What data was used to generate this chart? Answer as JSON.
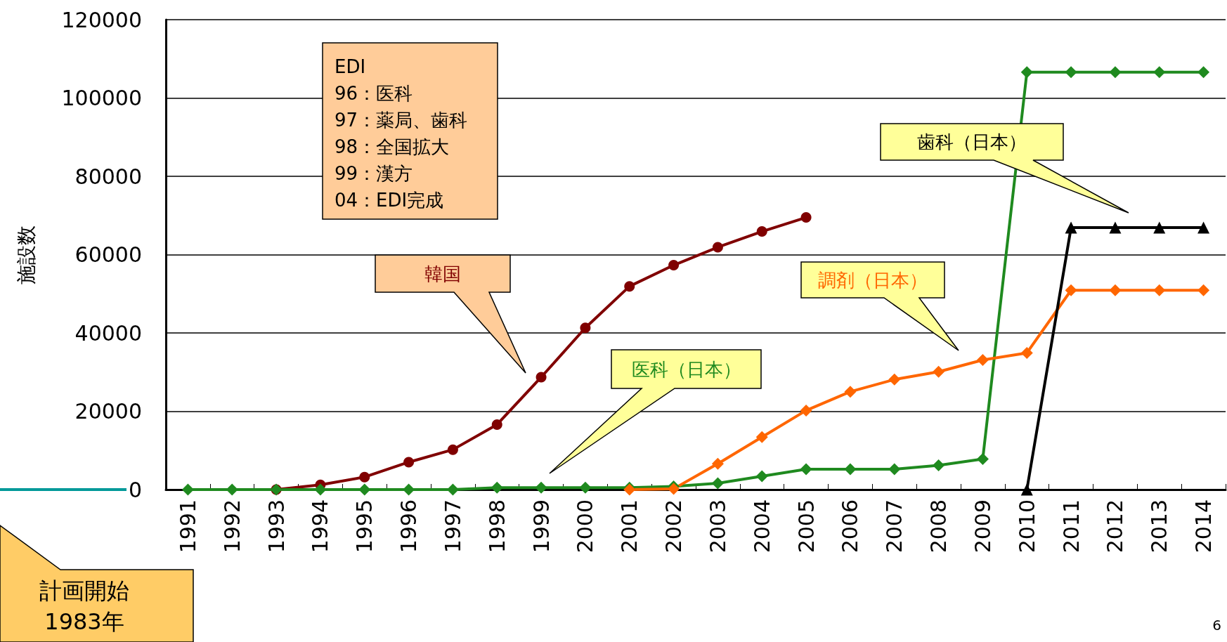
{
  "chart_data": {
    "type": "line",
    "ylabel": "施設数",
    "categories": [
      "1991",
      "1992",
      "1993",
      "1994",
      "1995",
      "1996",
      "1997",
      "1998",
      "1999",
      "2000",
      "2001",
      "2002",
      "2003",
      "2004",
      "2005",
      "2006",
      "2007",
      "2008",
      "2009",
      "2010",
      "2011",
      "2012",
      "2013",
      "2014"
    ],
    "ylim": [
      0,
      120000
    ],
    "yticks": [
      0,
      20000,
      40000,
      60000,
      80000,
      100000,
      120000
    ],
    "grid": "y",
    "legend": false,
    "series": [
      {
        "name": "韓国",
        "color": "#800000",
        "marker": "circle",
        "values": [
          null,
          null,
          0,
          1200,
          3200,
          7000,
          10200,
          16600,
          28700,
          41300,
          51900,
          57300,
          61900,
          65900,
          69500,
          null,
          null,
          null,
          null,
          null,
          null,
          null,
          null,
          null
        ]
      },
      {
        "name": "医科（日本）",
        "color": "#1f8a1f",
        "marker": "diamond",
        "values": [
          0,
          0,
          0,
          0,
          0,
          0,
          0,
          500,
          500,
          500,
          500,
          800,
          1600,
          3400,
          5200,
          5200,
          5200,
          6200,
          7800,
          106600,
          106600,
          106600,
          106600,
          106600
        ]
      },
      {
        "name": "調剤（日本）",
        "color": "#ff6600",
        "marker": "diamond",
        "values": [
          null,
          null,
          null,
          null,
          null,
          null,
          null,
          null,
          null,
          null,
          0,
          200,
          6600,
          13400,
          20200,
          25000,
          28100,
          30100,
          33100,
          34900,
          50900,
          50900,
          50900,
          50900
        ]
      },
      {
        "name": "歯科（日本）",
        "color": "#000000",
        "marker": "triangle",
        "values": [
          null,
          null,
          null,
          null,
          null,
          null,
          null,
          null,
          null,
          null,
          null,
          null,
          null,
          null,
          null,
          null,
          null,
          null,
          null,
          0,
          66900,
          66900,
          66900,
          66900
        ]
      }
    ],
    "annotations": [
      "EDI\n96：医科\n97：薬局、歯科\n98：全国拡大\n99：漢方\n04：EDI完成",
      "計画開始\n1983年",
      "6"
    ]
  }
}
